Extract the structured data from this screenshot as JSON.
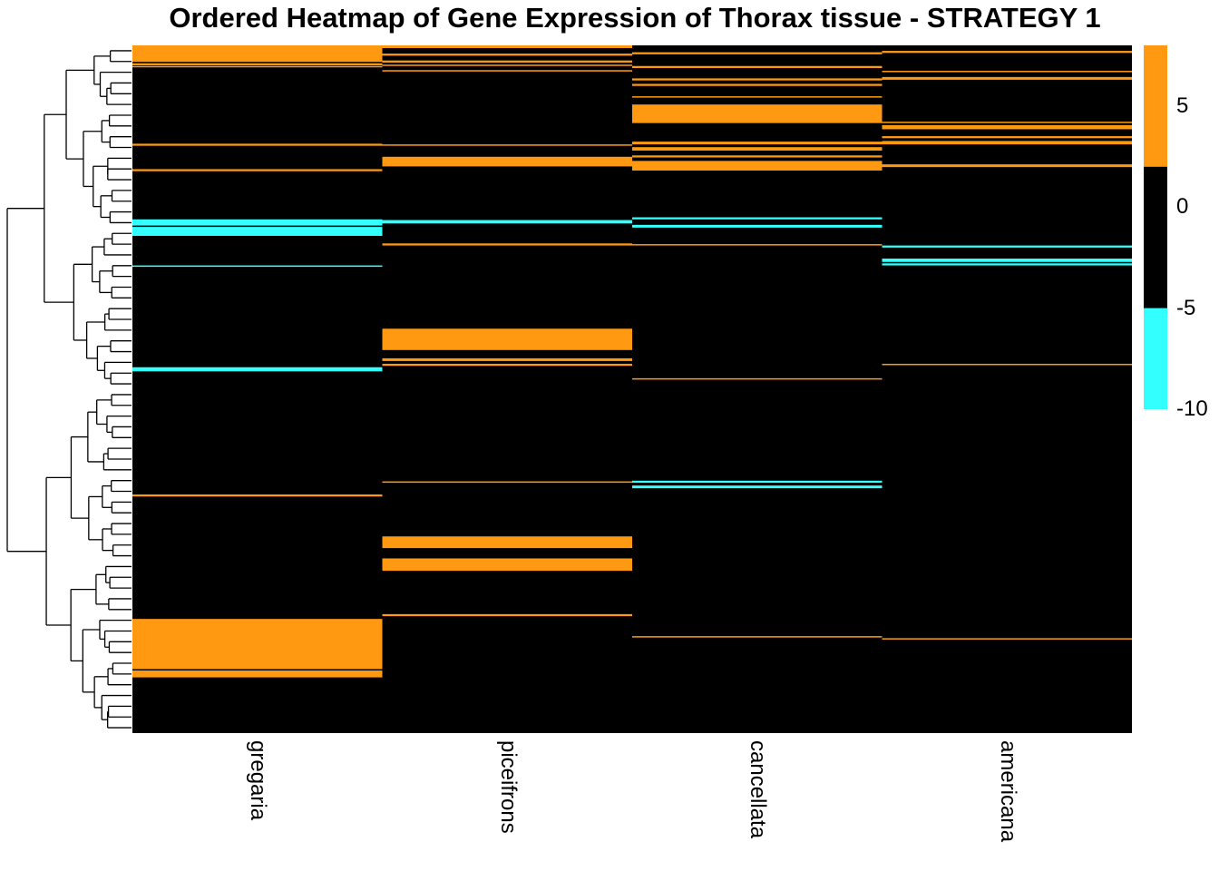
{
  "chart_data": {
    "type": "heatmap",
    "title": "Ordered Heatmap of Gene Expression of Thorax tissue - STRATEGY 1",
    "columns": [
      "gregaria",
      "piceifrons",
      "cancellata",
      "americana"
    ],
    "row_count": 1000,
    "value_range": [
      -10,
      8
    ],
    "color_scale": [
      {
        "from": -10,
        "to": -5,
        "color": "#33ffff"
      },
      {
        "from": -5,
        "to": 2,
        "color": "#000000"
      },
      {
        "from": 2,
        "to": 8,
        "color": "#ff9912"
      }
    ],
    "legend_ticks": [
      "5",
      "0",
      "-5",
      "-10"
    ],
    "legend_tick_values": [
      5,
      0,
      -5,
      -10
    ],
    "default_value": 0,
    "blocks": [
      {
        "column": "gregaria",
        "rows": [
          0,
          23
        ],
        "value": 6
      },
      {
        "column": "gregaria",
        "rows": [
          26,
          28
        ],
        "value": 6
      },
      {
        "column": "gregaria",
        "rows": [
          30,
          31
        ],
        "value": 6
      },
      {
        "column": "gregaria",
        "rows": [
          143,
          145
        ],
        "value": 6
      },
      {
        "column": "gregaria",
        "rows": [
          180,
          182
        ],
        "value": 6
      },
      {
        "column": "gregaria",
        "rows": [
          253,
          261
        ],
        "value": -8
      },
      {
        "column": "gregaria",
        "rows": [
          264,
          276
        ],
        "value": -8
      },
      {
        "column": "gregaria",
        "rows": [
          320,
          321
        ],
        "value": -6
      },
      {
        "column": "gregaria",
        "rows": [
          468,
          473
        ],
        "value": -8
      },
      {
        "column": "gregaria",
        "rows": [
          653,
          655
        ],
        "value": 6
      },
      {
        "column": "gregaria",
        "rows": [
          834,
          906
        ],
        "value": 6
      },
      {
        "column": "gregaria",
        "rows": [
          909,
          918
        ],
        "value": 6
      },
      {
        "column": "piceifrons",
        "rows": [
          0,
          3
        ],
        "value": 6
      },
      {
        "column": "piceifrons",
        "rows": [
          12,
          14
        ],
        "value": 6
      },
      {
        "column": "piceifrons",
        "rows": [
          22,
          24
        ],
        "value": 6
      },
      {
        "column": "piceifrons",
        "rows": [
          28,
          29
        ],
        "value": 6
      },
      {
        "column": "piceifrons",
        "rows": [
          36,
          37
        ],
        "value": 6
      },
      {
        "column": "piceifrons",
        "rows": [
          144,
          145
        ],
        "value": 6
      },
      {
        "column": "piceifrons",
        "rows": [
          162,
          175
        ],
        "value": 6
      },
      {
        "column": "piceifrons",
        "rows": [
          254,
          258
        ],
        "value": -8
      },
      {
        "column": "piceifrons",
        "rows": [
          288,
          290
        ],
        "value": 6
      },
      {
        "column": "piceifrons",
        "rows": [
          412,
          442
        ],
        "value": 6
      },
      {
        "column": "piceifrons",
        "rows": [
          455,
          458
        ],
        "value": 6
      },
      {
        "column": "piceifrons",
        "rows": [
          463,
          465
        ],
        "value": 6
      },
      {
        "column": "piceifrons",
        "rows": [
          634,
          635
        ],
        "value": 6
      },
      {
        "column": "piceifrons",
        "rows": [
          714,
          730
        ],
        "value": 6
      },
      {
        "column": "piceifrons",
        "rows": [
          746,
          763
        ],
        "value": 6
      },
      {
        "column": "piceifrons",
        "rows": [
          827,
          829
        ],
        "value": 6
      },
      {
        "column": "cancellata",
        "rows": [
          10,
          12
        ],
        "value": 6
      },
      {
        "column": "cancellata",
        "rows": [
          30,
          32
        ],
        "value": 6
      },
      {
        "column": "cancellata",
        "rows": [
          48,
          50
        ],
        "value": 6
      },
      {
        "column": "cancellata",
        "rows": [
          56,
          58
        ],
        "value": 6
      },
      {
        "column": "cancellata",
        "rows": [
          74,
          75
        ],
        "value": 6
      },
      {
        "column": "cancellata",
        "rows": [
          86,
          112
        ],
        "value": 6
      },
      {
        "column": "cancellata",
        "rows": [
          140,
          143
        ],
        "value": 6
      },
      {
        "column": "cancellata",
        "rows": [
          148,
          152
        ],
        "value": 6
      },
      {
        "column": "cancellata",
        "rows": [
          160,
          162
        ],
        "value": 6
      },
      {
        "column": "cancellata",
        "rows": [
          168,
          181
        ],
        "value": 6
      },
      {
        "column": "cancellata",
        "rows": [
          250,
          252
        ],
        "value": -7
      },
      {
        "column": "cancellata",
        "rows": [
          261,
          264
        ],
        "value": -7
      },
      {
        "column": "cancellata",
        "rows": [
          289,
          290
        ],
        "value": 4
      },
      {
        "column": "cancellata",
        "rows": [
          484,
          485
        ],
        "value": 4
      },
      {
        "column": "cancellata",
        "rows": [
          633,
          635
        ],
        "value": -7
      },
      {
        "column": "cancellata",
        "rows": [
          640,
          643
        ],
        "value": -8
      },
      {
        "column": "cancellata",
        "rows": [
          859,
          860
        ],
        "value": 4
      },
      {
        "column": "americana",
        "rows": [
          8,
          10
        ],
        "value": 6
      },
      {
        "column": "americana",
        "rows": [
          37,
          38
        ],
        "value": 6
      },
      {
        "column": "americana",
        "rows": [
          46,
          49
        ],
        "value": 6
      },
      {
        "column": "americana",
        "rows": [
          111,
          112
        ],
        "value": 6
      },
      {
        "column": "americana",
        "rows": [
          116,
          121
        ],
        "value": 6
      },
      {
        "column": "americana",
        "rows": [
          132,
          134
        ],
        "value": 6
      },
      {
        "column": "americana",
        "rows": [
          139,
          143
        ],
        "value": 6
      },
      {
        "column": "americana",
        "rows": [
          173,
          176
        ],
        "value": 6
      },
      {
        "column": "americana",
        "rows": [
          291,
          293
        ],
        "value": -6
      },
      {
        "column": "americana",
        "rows": [
          310,
          314
        ],
        "value": -8
      },
      {
        "column": "americana",
        "rows": [
          317,
          319
        ],
        "value": -8
      },
      {
        "column": "americana",
        "rows": [
          463,
          464
        ],
        "value": 4
      },
      {
        "column": "americana",
        "rows": [
          862,
          863
        ],
        "value": 4
      }
    ],
    "dendrogram": "row clustering dendrogram (hierarchical), drawn on the left"
  }
}
